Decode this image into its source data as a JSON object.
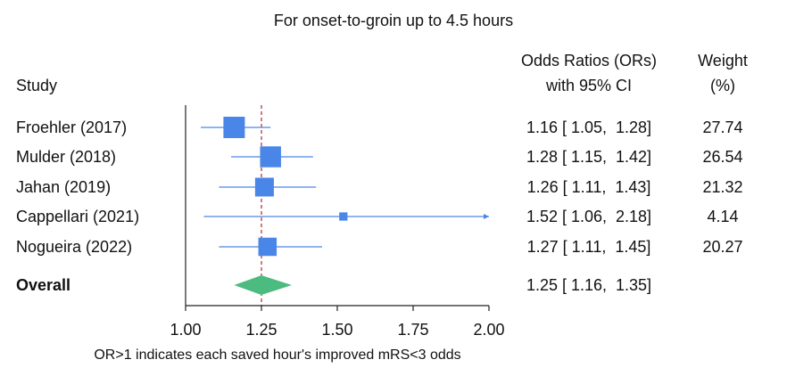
{
  "chart_data": {
    "type": "forest",
    "title": "For onset-to-groin up to 4.5 hours",
    "columns": {
      "study": "Study",
      "or_line1": "Odds Ratios (ORs)",
      "or_line2": "with 95% CI",
      "weight_line1": "Weight",
      "weight_line2": "(%)"
    },
    "studies": [
      {
        "name": "Froehler (2017)",
        "or": 1.16,
        "lo": 1.05,
        "hi": 1.28,
        "or_text": "1.16 [ 1.05,  1.28]",
        "weight": 27.74,
        "weight_text": "27.74"
      },
      {
        "name": "Mulder (2018)",
        "or": 1.28,
        "lo": 1.15,
        "hi": 1.42,
        "or_text": "1.28 [ 1.15,  1.42]",
        "weight": 26.54,
        "weight_text": "26.54"
      },
      {
        "name": "Jahan (2019)",
        "or": 1.26,
        "lo": 1.11,
        "hi": 1.43,
        "or_text": "1.26 [ 1.11,  1.43]",
        "weight": 21.32,
        "weight_text": "21.32"
      },
      {
        "name": "Cappellari (2021)",
        "or": 1.52,
        "lo": 1.06,
        "hi": 2.18,
        "or_text": "1.52 [ 1.06,  2.18]",
        "weight": 4.14,
        "weight_text": "4.14"
      },
      {
        "name": "Nogueira (2022)",
        "or": 1.27,
        "lo": 1.11,
        "hi": 1.45,
        "or_text": "1.27 [ 1.11,  1.45]",
        "weight": 20.27,
        "weight_text": "20.27"
      }
    ],
    "overall": {
      "name": "Overall",
      "or": 1.25,
      "lo": 1.16,
      "hi": 1.35,
      "or_text": "1.25 [ 1.16,  1.35]"
    },
    "xaxis": {
      "range": [
        1.0,
        2.0
      ],
      "ticks": [
        1.0,
        1.25,
        1.5,
        1.75,
        2.0
      ],
      "tick_labels": [
        "1.00",
        "1.25",
        "1.50",
        "1.75",
        "2.00"
      ],
      "label": "OR>1 indicates each saved hour's improved mRS<3 odds"
    },
    "reference_line": 1.25,
    "colors": {
      "study": "#4a86e8",
      "overall": "#4cbb7f",
      "reference": "#b5252a",
      "axis": "#222222"
    }
  }
}
